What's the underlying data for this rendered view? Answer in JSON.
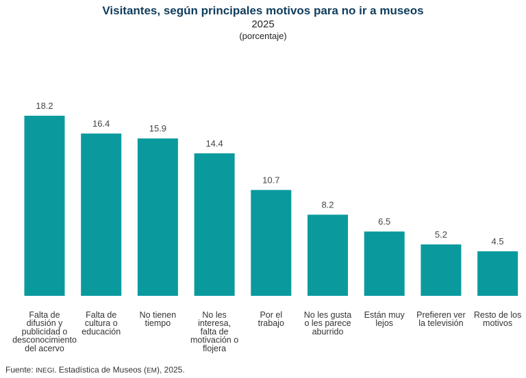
{
  "title": "Visitantes, según principales motivos para no ir a museos",
  "year": "2025",
  "subtitle": "(porcentaje)",
  "source": {
    "prefix": "Fuente: ",
    "org": "INEGI",
    "text1": ". Estadística de Museos (",
    "abbr": "EM",
    "text2": "), 2025."
  },
  "chart_data": {
    "type": "bar",
    "title": "Visitantes, según principales motivos para no ir a museos",
    "xlabel": "",
    "ylabel": "",
    "ylim": [
      0,
      20
    ],
    "grid": false,
    "legend": "none",
    "color": "#0a9a9e",
    "categories": [
      [
        "Falta de",
        "difusión y",
        "publicidad o",
        "desconocimiento",
        "del acervo"
      ],
      [
        "Falta de",
        "cultura o",
        "educación"
      ],
      [
        "No tienen",
        "tiempo"
      ],
      [
        "No les",
        "interesa,",
        "falta de",
        "motivación o",
        "flojera"
      ],
      [
        "Por el",
        "trabajo"
      ],
      [
        "No les gusta",
        "o les parece",
        "aburrido"
      ],
      [
        "Están muy",
        "lejos"
      ],
      [
        "Prefieren ver",
        "la televisión"
      ],
      [
        "Resto de los",
        "motivos"
      ]
    ],
    "values": [
      18.2,
      16.4,
      15.9,
      14.4,
      10.7,
      8.2,
      6.5,
      5.2,
      4.5
    ],
    "value_labels": [
      "18.2",
      "16.4",
      "15.9",
      "14.4",
      "10.7",
      "8.2",
      "6.5",
      "5.2",
      "4.5"
    ]
  }
}
